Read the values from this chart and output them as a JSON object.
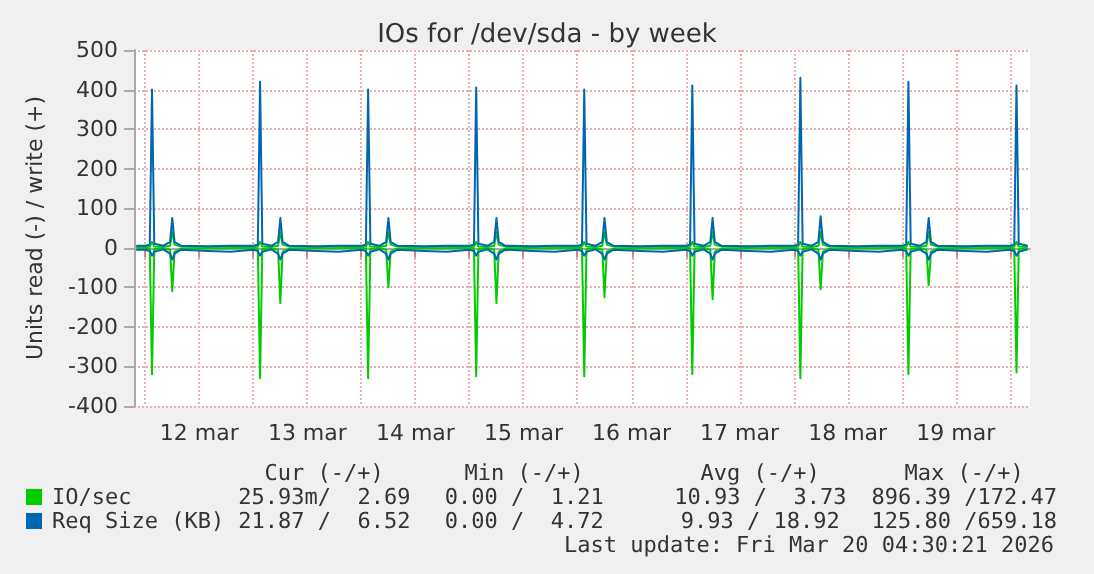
{
  "chart_data": {
    "type": "line",
    "title": "IOs for /dev/sda - by week",
    "ylabel": "Units read (-) / write (+)",
    "x": [
      "2026-03-11T22:00",
      "2026-03-12T00:00",
      "2026-03-12T01:00",
      "2026-03-12T01:30",
      "2026-03-12T02:00",
      "2026-03-12T04:00",
      "2026-03-12T05:30",
      "2026-03-12T06:00",
      "2026-03-12T06:30",
      "2026-03-12T08:00",
      "2026-03-12T14:00",
      "2026-03-12T19:00",
      "2026-03-13T00:00",
      "2026-03-13T01:00",
      "2026-03-13T01:30",
      "2026-03-13T02:00",
      "2026-03-13T04:00",
      "2026-03-13T05:30",
      "2026-03-13T06:00",
      "2026-03-13T06:30",
      "2026-03-13T08:00",
      "2026-03-13T14:00",
      "2026-03-13T19:00",
      "2026-03-14T00:00",
      "2026-03-14T01:00",
      "2026-03-14T01:30",
      "2026-03-14T02:00",
      "2026-03-14T04:00",
      "2026-03-14T05:30",
      "2026-03-14T06:00",
      "2026-03-14T06:30",
      "2026-03-14T08:00",
      "2026-03-14T14:00",
      "2026-03-14T19:00",
      "2026-03-15T00:00",
      "2026-03-15T01:00",
      "2026-03-15T01:30",
      "2026-03-15T02:00",
      "2026-03-15T04:00",
      "2026-03-15T05:30",
      "2026-03-15T06:00",
      "2026-03-15T06:30",
      "2026-03-15T08:00",
      "2026-03-15T14:00",
      "2026-03-15T19:00",
      "2026-03-16T00:00",
      "2026-03-16T01:00",
      "2026-03-16T01:30",
      "2026-03-16T02:00",
      "2026-03-16T04:00",
      "2026-03-16T05:30",
      "2026-03-16T06:00",
      "2026-03-16T06:30",
      "2026-03-16T08:00",
      "2026-03-16T14:00",
      "2026-03-16T19:00",
      "2026-03-17T00:00",
      "2026-03-17T01:00",
      "2026-03-17T01:30",
      "2026-03-17T02:00",
      "2026-03-17T04:00",
      "2026-03-17T05:30",
      "2026-03-17T06:00",
      "2026-03-17T06:30",
      "2026-03-17T08:00",
      "2026-03-17T14:00",
      "2026-03-17T19:00",
      "2026-03-18T00:00",
      "2026-03-18T01:00",
      "2026-03-18T01:30",
      "2026-03-18T02:00",
      "2026-03-18T04:00",
      "2026-03-18T05:30",
      "2026-03-18T06:00",
      "2026-03-18T06:30",
      "2026-03-18T08:00",
      "2026-03-18T14:00",
      "2026-03-18T19:00",
      "2026-03-19T00:00",
      "2026-03-19T01:00",
      "2026-03-19T01:30",
      "2026-03-19T02:00",
      "2026-03-19T04:00",
      "2026-03-19T05:30",
      "2026-03-19T06:00",
      "2026-03-19T06:30",
      "2026-03-19T08:00",
      "2026-03-19T14:00",
      "2026-03-19T19:00",
      "2026-03-20T00:00",
      "2026-03-20T01:00",
      "2026-03-20T01:30",
      "2026-03-20T02:00",
      "2026-03-20T04:00"
    ],
    "series": [
      {
        "name": "IO/sec",
        "color": "#00cc00",
        "values": [
          0,
          0,
          -2,
          -320,
          -3,
          -1,
          -5,
          -110,
          -10,
          -2,
          -1,
          -1,
          0,
          -2,
          -330,
          -3,
          -1,
          -5,
          -140,
          -10,
          -2,
          -1,
          -1,
          0,
          -2,
          -330,
          -3,
          -1,
          -5,
          -100,
          -10,
          -2,
          -1,
          -1,
          0,
          -2,
          -325,
          -3,
          -1,
          -5,
          -140,
          -10,
          -2,
          -1,
          -1,
          0,
          -2,
          -325,
          -3,
          -1,
          -5,
          -125,
          -10,
          -2,
          -1,
          -1,
          0,
          -2,
          -320,
          -3,
          -1,
          -5,
          -130,
          -10,
          -2,
          -1,
          -1,
          0,
          -2,
          -330,
          -3,
          -1,
          -5,
          -105,
          -10,
          -2,
          -1,
          -1,
          0,
          -2,
          -320,
          -3,
          -1,
          -5,
          -95,
          -10,
          -2,
          -1,
          -1,
          0,
          -2,
          -315,
          -3,
          -1
        ]
      },
      {
        "color": "#00cc00",
        "values": [
          2,
          2,
          3,
          15,
          3,
          2,
          5,
          40,
          8,
          3,
          2,
          3,
          2,
          3,
          15,
          3,
          2,
          5,
          40,
          8,
          3,
          2,
          3,
          2,
          3,
          15,
          3,
          2,
          5,
          40,
          8,
          3,
          2,
          3,
          2,
          3,
          15,
          3,
          2,
          5,
          40,
          8,
          3,
          2,
          3,
          2,
          3,
          15,
          3,
          2,
          5,
          40,
          8,
          3,
          2,
          3,
          2,
          3,
          15,
          3,
          2,
          5,
          40,
          8,
          3,
          2,
          3,
          2,
          3,
          15,
          3,
          2,
          5,
          40,
          8,
          3,
          2,
          3,
          2,
          3,
          15,
          3,
          2,
          5,
          40,
          8,
          3,
          2,
          3,
          2,
          3,
          15,
          3,
          2
        ]
      },
      {
        "name": "Req Size (KB)",
        "color": "#0066b3",
        "values": [
          -5,
          -5,
          -8,
          -20,
          -10,
          -4,
          -15,
          -30,
          -15,
          -5,
          -8,
          -10,
          -5,
          -8,
          -20,
          -10,
          -4,
          -15,
          -30,
          -15,
          -5,
          -8,
          -10,
          -5,
          -8,
          -20,
          -10,
          -4,
          -15,
          -30,
          -15,
          -5,
          -8,
          -10,
          -5,
          -8,
          -20,
          -10,
          -4,
          -15,
          -30,
          -15,
          -5,
          -8,
          -10,
          -5,
          -8,
          -20,
          -10,
          -4,
          -15,
          -30,
          -15,
          -5,
          -8,
          -10,
          -5,
          -8,
          -20,
          -10,
          -4,
          -15,
          -30,
          -15,
          -5,
          -8,
          -10,
          -5,
          -8,
          -20,
          -10,
          -4,
          -15,
          -30,
          -15,
          -5,
          -8,
          -10,
          -5,
          -8,
          -20,
          -10,
          -4,
          -15,
          -30,
          -15,
          -5,
          -8,
          -10,
          -5,
          -8,
          -20,
          -10,
          -4
        ]
      },
      {
        "color": "#0066b3",
        "values": [
          5,
          5,
          8,
          400,
          10,
          5,
          15,
          75,
          15,
          5,
          4,
          5,
          5,
          8,
          420,
          10,
          5,
          15,
          75,
          15,
          5,
          4,
          5,
          5,
          8,
          400,
          10,
          5,
          15,
          75,
          15,
          5,
          4,
          5,
          5,
          8,
          405,
          10,
          5,
          15,
          75,
          15,
          5,
          4,
          5,
          5,
          8,
          400,
          10,
          5,
          15,
          75,
          15,
          5,
          4,
          5,
          5,
          8,
          410,
          10,
          5,
          15,
          75,
          15,
          5,
          4,
          5,
          5,
          8,
          430,
          10,
          5,
          15,
          80,
          15,
          5,
          4,
          5,
          5,
          8,
          420,
          10,
          5,
          15,
          75,
          15,
          5,
          4,
          5,
          5,
          8,
          410,
          10,
          5
        ]
      }
    ],
    "xlim": [
      "2026-03-11T21:30",
      "2026-03-20T04:30"
    ],
    "xticks": [
      {
        "value": "2026-03-12T00:00",
        "label": null
      },
      {
        "value": "2026-03-12T12:00",
        "label": "12 mar"
      },
      {
        "value": "2026-03-13T00:00",
        "label": null
      },
      {
        "value": "2026-03-13T12:00",
        "label": "13 mar"
      },
      {
        "value": "2026-03-14T00:00",
        "label": null
      },
      {
        "value": "2026-03-14T12:00",
        "label": "14 mar"
      },
      {
        "value": "2026-03-15T00:00",
        "label": null
      },
      {
        "value": "2026-03-15T12:00",
        "label": "15 mar"
      },
      {
        "value": "2026-03-16T00:00",
        "label": null
      },
      {
        "value": "2026-03-16T12:00",
        "label": "16 mar"
      },
      {
        "value": "2026-03-17T00:00",
        "label": null
      },
      {
        "value": "2026-03-17T12:00",
        "label": "17 mar"
      },
      {
        "value": "2026-03-18T00:00",
        "label": null
      },
      {
        "value": "2026-03-18T12:00",
        "label": "18 mar"
      },
      {
        "value": "2026-03-19T00:00",
        "label": null
      },
      {
        "value": "2026-03-19T12:00",
        "label": "19 mar"
      },
      {
        "value": "2026-03-20T00:00",
        "label": null
      }
    ],
    "ylim": [
      -400,
      500
    ],
    "yticks": [
      -400,
      -300,
      -200,
      -100,
      0,
      100,
      200,
      300,
      400,
      500
    ],
    "grid": true,
    "legend": "bottom left",
    "marker": "none",
    "line_style": "solid",
    "annotations": [
      "Cur (-/+)",
      "Min (-/+)",
      "Avg (-/+)",
      "Max (-/+)",
      "25.93m/  2.69",
      "0.00 /  1.21",
      "10.93 /  3.73",
      "896.39 /172.47",
      "21.87 /  6.52",
      "0.00 /  4.72",
      "9.93 / 18.92",
      "125.80 /659.18",
      "Last update: Fri Mar 20 04:30:21 2026"
    ]
  }
}
